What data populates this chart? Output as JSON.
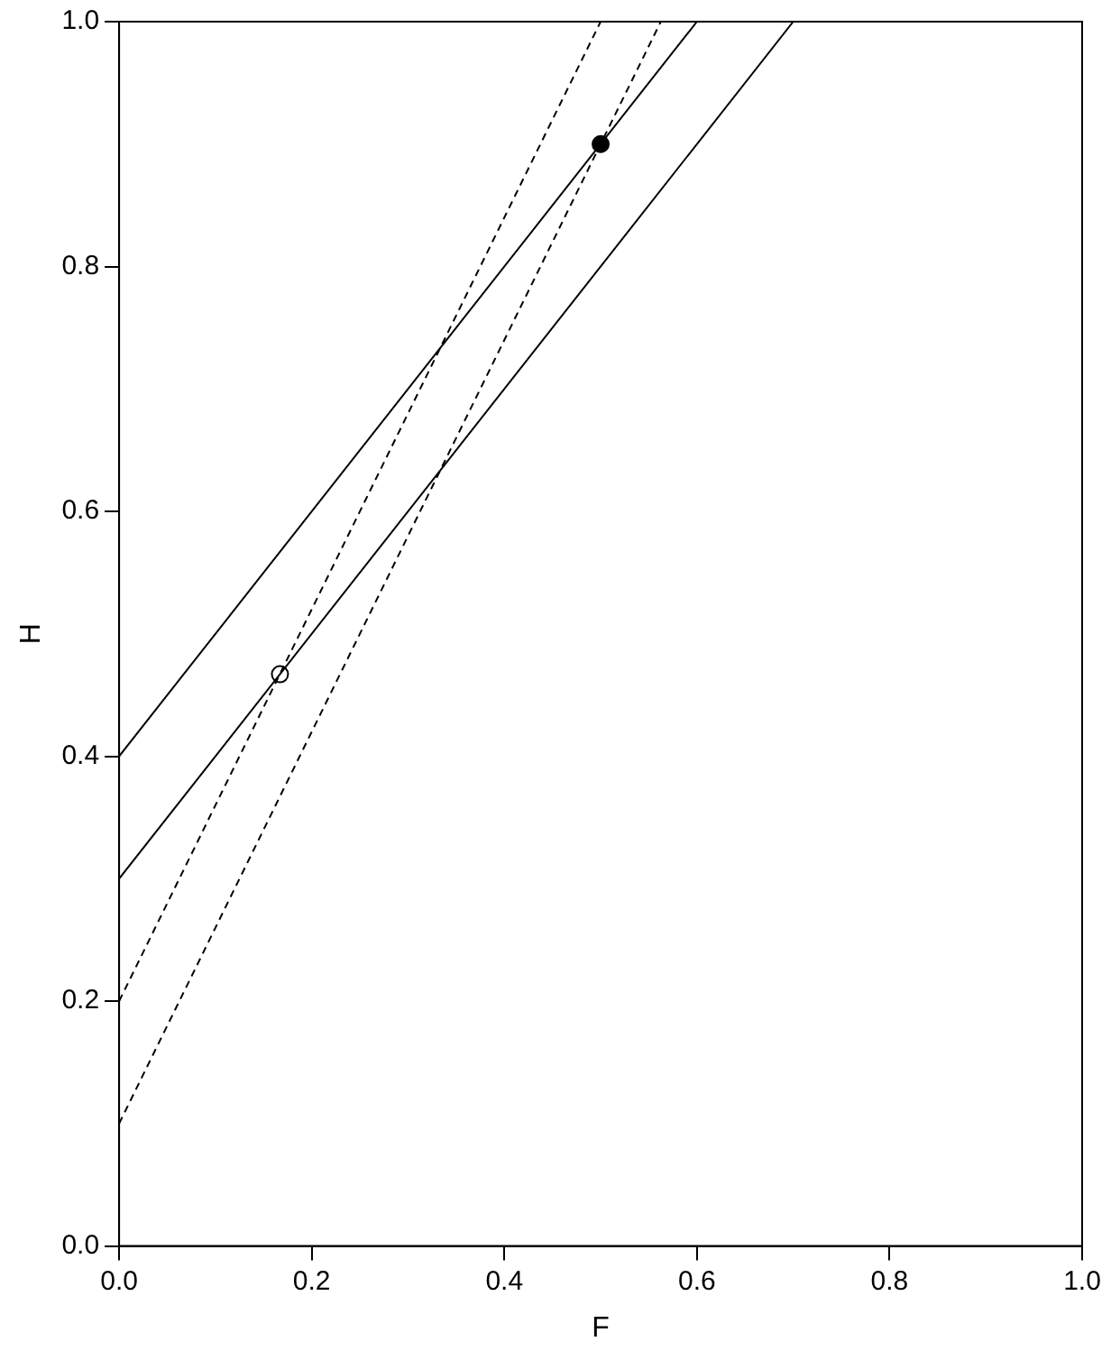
{
  "chart_data": {
    "type": "line",
    "xlabel": "F",
    "ylabel": "H",
    "xlim": [
      0,
      1
    ],
    "ylim": [
      0,
      1
    ],
    "xticks": [
      {
        "value": 0,
        "label": "0.0"
      },
      {
        "value": 0.2,
        "label": "0.2"
      },
      {
        "value": 0.4,
        "label": "0.4"
      },
      {
        "value": 0.6,
        "label": "0.6"
      },
      {
        "value": 0.8,
        "label": "0.8"
      },
      {
        "value": 1,
        "label": "1.0"
      }
    ],
    "yticks": [
      {
        "value": 0,
        "label": "0.0"
      },
      {
        "value": 0.2,
        "label": "0.2"
      },
      {
        "value": 0.4,
        "label": "0.4"
      },
      {
        "value": 0.6,
        "label": "0.6"
      },
      {
        "value": 0.8,
        "label": "0.8"
      },
      {
        "value": 1,
        "label": "1.0"
      }
    ],
    "grid": false,
    "legend": false,
    "marker": "none",
    "series": [
      {
        "color": "#000000",
        "line_style": "solid",
        "x": [
          0,
          0.6
        ],
        "values": [
          0.4,
          1.0
        ]
      },
      {
        "color": "#000000",
        "line_style": "solid",
        "x": [
          0,
          0.7
        ],
        "values": [
          0.3,
          1.0
        ]
      },
      {
        "color": "#000000",
        "line_style": "dashed",
        "x": [
          0,
          0.5
        ],
        "values": [
          0.2,
          1.0
        ]
      },
      {
        "color": "#000000",
        "line_style": "dashed",
        "x": [
          0,
          0.5625
        ],
        "values": [
          0.1,
          1.0
        ]
      },
      {
        "type": "scatter",
        "color": "#000000",
        "marker": "circle",
        "x": [
          0.5
        ],
        "values": [
          0.9
        ]
      },
      {
        "type": "scatter",
        "color": "#ffffff",
        "marker": "circle",
        "x": [
          0.167
        ],
        "values": [
          0.467
        ]
      }
    ]
  }
}
